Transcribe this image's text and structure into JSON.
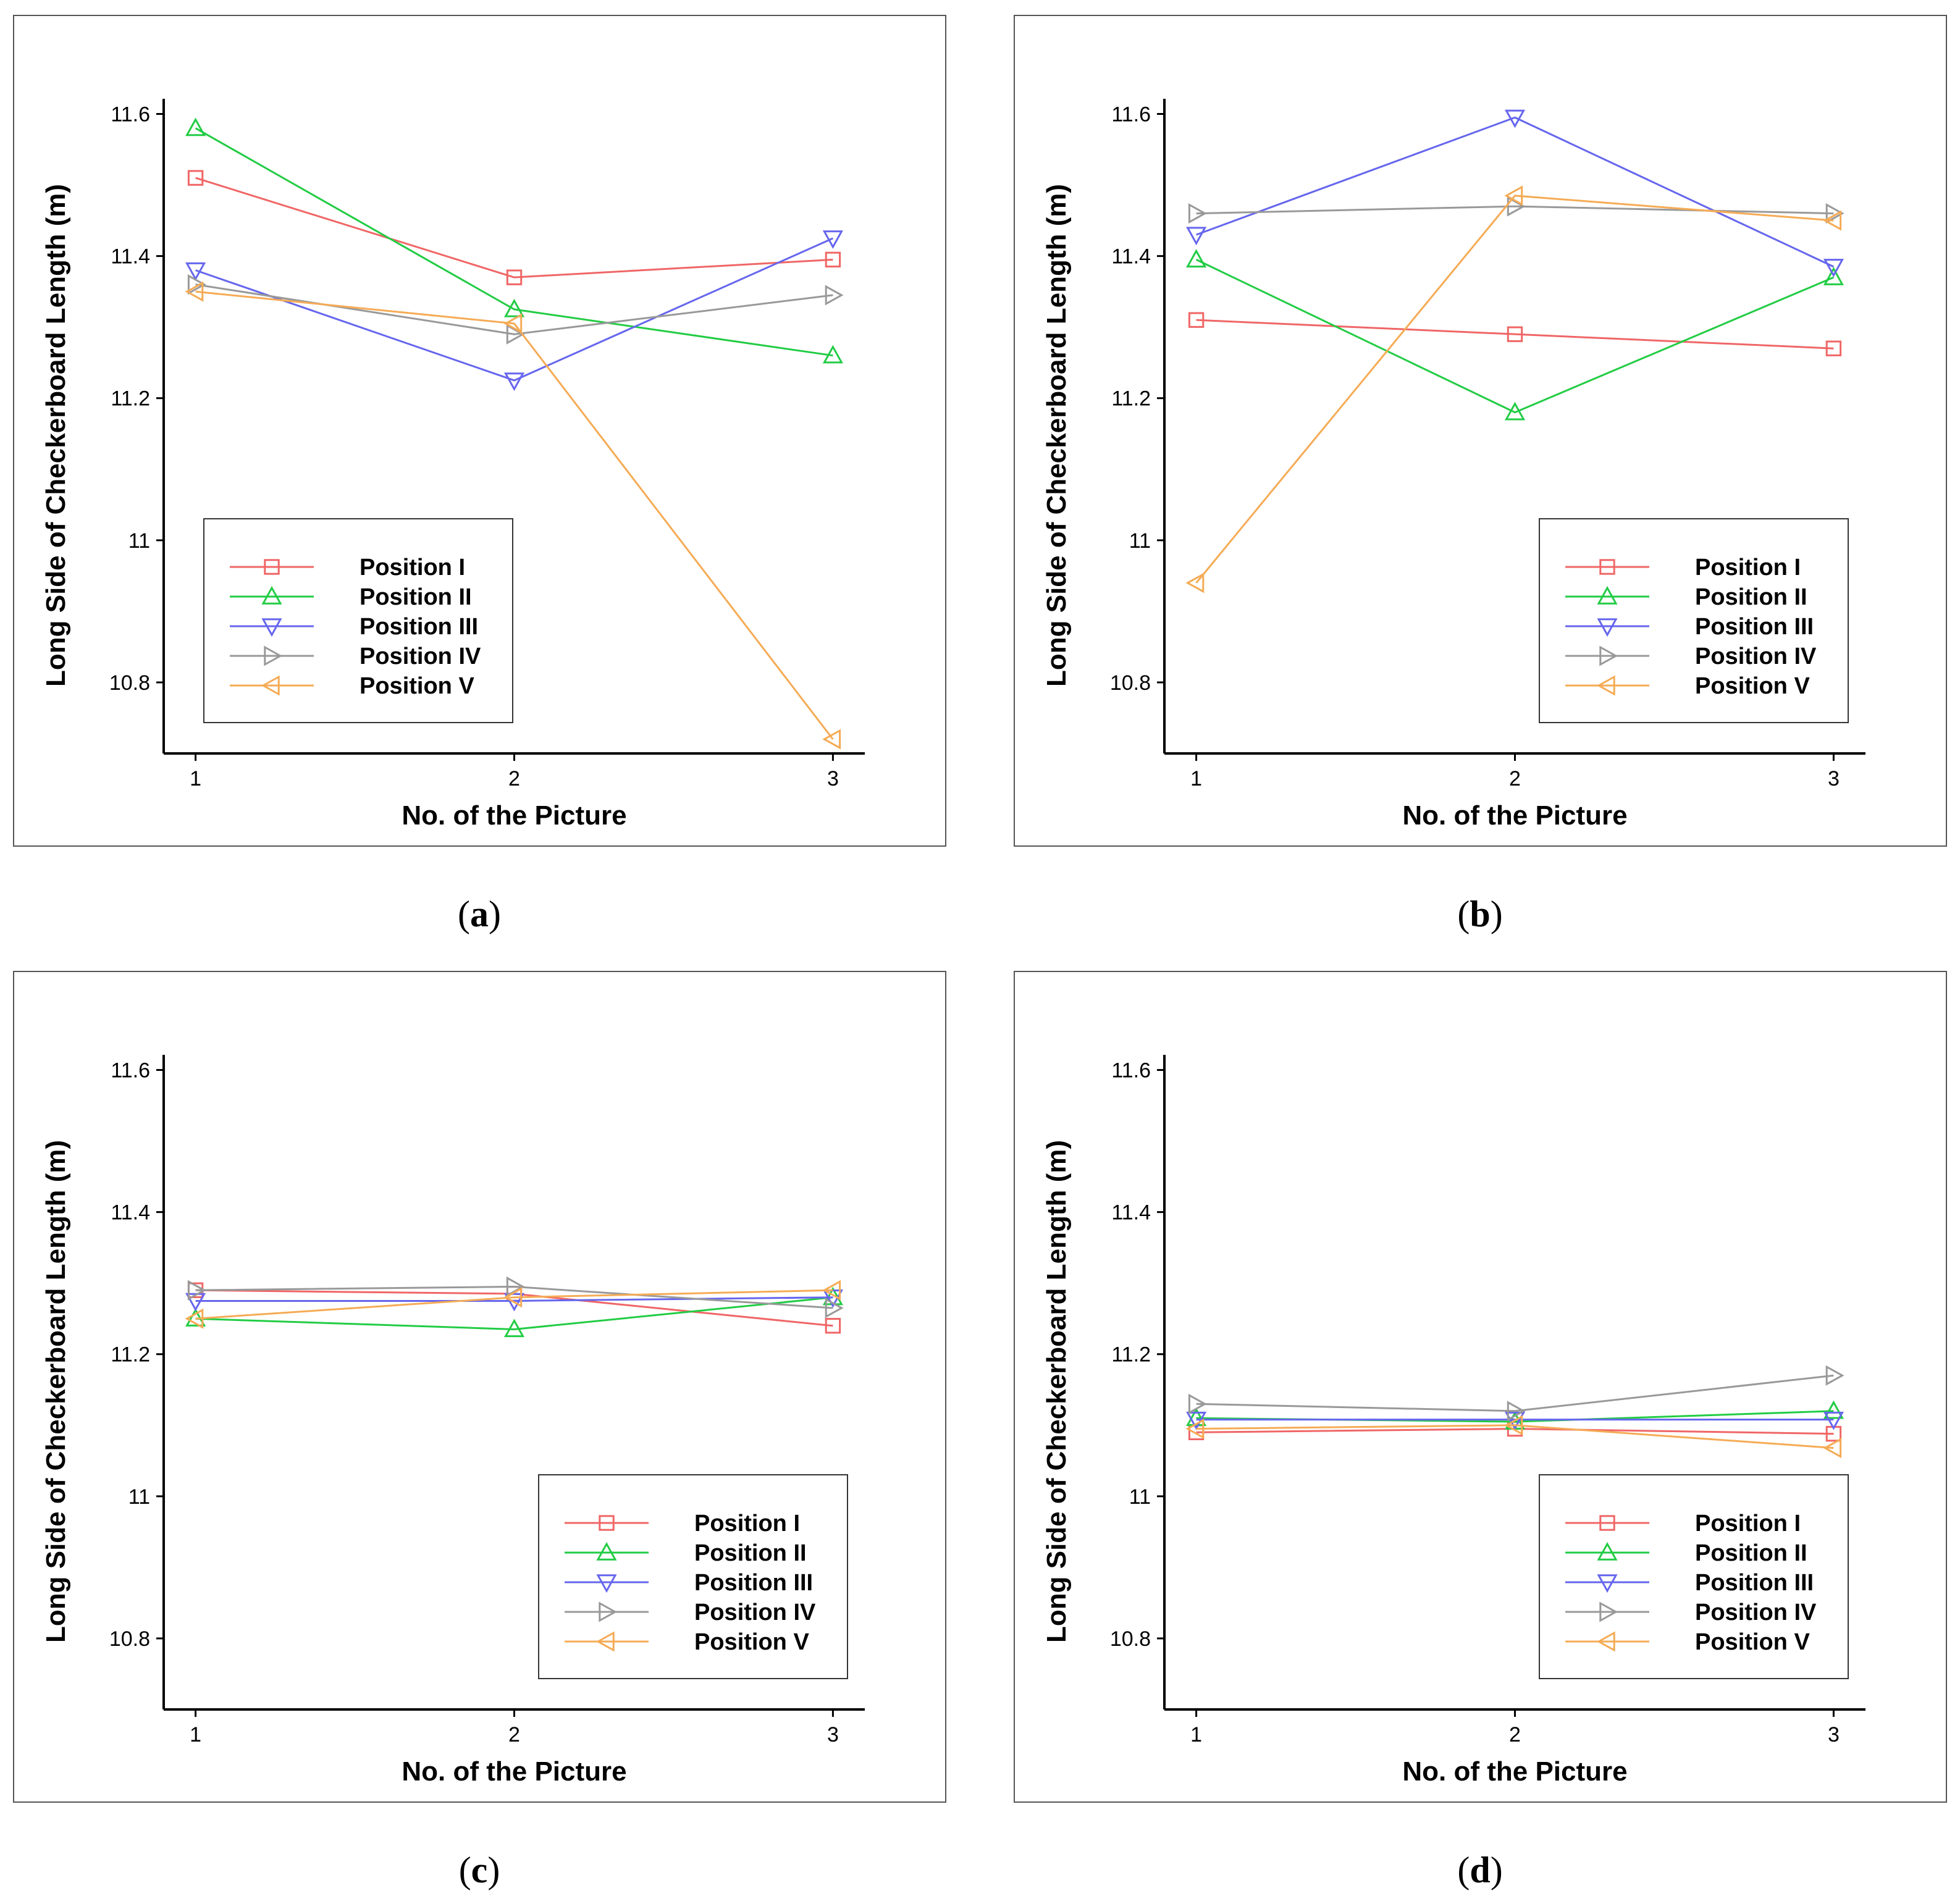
{
  "figure": {
    "panels": [
      "a",
      "b",
      "c",
      "d"
    ],
    "captions": [
      "(a)",
      "(b)",
      "(c)",
      "(d)"
    ],
    "caption_letters": [
      "a",
      "b",
      "c",
      "d"
    ]
  },
  "chart_data": [
    {
      "panel": "a",
      "type": "line",
      "xlabel": "No. of the Picture",
      "ylabel": "Long Side of Checkerboard Length (m)",
      "x": [
        1,
        2,
        3
      ],
      "xlim": [
        0.9,
        3.1
      ],
      "ylim": [
        10.7,
        11.63
      ],
      "yticks": [
        10.8,
        11,
        11.2,
        11.4,
        11.6
      ],
      "ytick_labels": [
        "10.8",
        "11",
        "11.2",
        "11.4",
        "11.6"
      ],
      "xtick_labels": [
        "1",
        "2",
        "3"
      ],
      "legend_position": "bottom-center",
      "series": [
        {
          "name": "Position I",
          "color": "#f06666",
          "marker": "square",
          "values": [
            11.51,
            11.37,
            11.395
          ]
        },
        {
          "name": "Position II",
          "color": "#22cc44",
          "marker": "triangle-up",
          "values": [
            11.58,
            11.325,
            11.26
          ]
        },
        {
          "name": "Position III",
          "color": "#6666ee",
          "marker": "triangle-down",
          "values": [
            11.38,
            11.225,
            11.425
          ]
        },
        {
          "name": "Position IV",
          "color": "#999999",
          "marker": "triangle-right",
          "values": [
            11.36,
            11.29,
            11.345
          ]
        },
        {
          "name": "Position V",
          "color": "#f5ab55",
          "marker": "triangle-left",
          "values": [
            11.35,
            11.305,
            10.72
          ]
        }
      ]
    },
    {
      "panel": "b",
      "type": "line",
      "xlabel": "No. of the Picture",
      "ylabel": "Long Side of Checkerboard Length (m)",
      "x": [
        1,
        2,
        3
      ],
      "xlim": [
        0.9,
        3.1
      ],
      "ylim": [
        10.7,
        11.63
      ],
      "yticks": [
        10.8,
        11,
        11.2,
        11.4,
        11.6
      ],
      "ytick_labels": [
        "10.8",
        "11",
        "11.2",
        "11.4",
        "11.6"
      ],
      "xtick_labels": [
        "1",
        "2",
        "3"
      ],
      "legend_position": "bottom-right",
      "series": [
        {
          "name": "Position I",
          "color": "#f06666",
          "marker": "square",
          "values": [
            11.31,
            11.29,
            11.27
          ]
        },
        {
          "name": "Position II",
          "color": "#22cc44",
          "marker": "triangle-up",
          "values": [
            11.395,
            11.18,
            11.37
          ]
        },
        {
          "name": "Position III",
          "color": "#6666ee",
          "marker": "triangle-down",
          "values": [
            11.43,
            11.595,
            11.385
          ]
        },
        {
          "name": "Position IV",
          "color": "#999999",
          "marker": "triangle-right",
          "values": [
            11.46,
            11.47,
            11.46
          ]
        },
        {
          "name": "Position V",
          "color": "#f5ab55",
          "marker": "triangle-left",
          "values": [
            10.94,
            11.485,
            11.45
          ]
        }
      ]
    },
    {
      "panel": "c",
      "type": "line",
      "xlabel": "No. of the Picture",
      "ylabel": "Long Side of Checkerboard Length (m)",
      "x": [
        1,
        2,
        3
      ],
      "xlim": [
        0.9,
        3.1
      ],
      "ylim": [
        10.7,
        11.63
      ],
      "yticks": [
        10.8,
        11,
        11.2,
        11.4,
        11.6
      ],
      "ytick_labels": [
        "10.8",
        "11",
        "11.2",
        "11.4",
        "11.6"
      ],
      "xtick_labels": [
        "1",
        "2",
        "3"
      ],
      "legend_position": "bottom-right",
      "series": [
        {
          "name": "Position I",
          "color": "#f06666",
          "marker": "square",
          "values": [
            11.29,
            11.285,
            11.24
          ]
        },
        {
          "name": "Position II",
          "color": "#22cc44",
          "marker": "triangle-up",
          "values": [
            11.25,
            11.235,
            11.28
          ]
        },
        {
          "name": "Position III",
          "color": "#6666ee",
          "marker": "triangle-down",
          "values": [
            11.275,
            11.275,
            11.28
          ]
        },
        {
          "name": "Position IV",
          "color": "#999999",
          "marker": "triangle-right",
          "values": [
            11.29,
            11.295,
            11.265
          ]
        },
        {
          "name": "Position V",
          "color": "#f5ab55",
          "marker": "triangle-left",
          "values": [
            11.25,
            11.28,
            11.29
          ]
        }
      ]
    },
    {
      "panel": "d",
      "type": "line",
      "xlabel": "No. of the Picture",
      "ylabel": "Long Side of Checkerboard Length (m)",
      "x": [
        1,
        2,
        3
      ],
      "xlim": [
        0.9,
        3.1
      ],
      "ylim": [
        10.7,
        11.63
      ],
      "yticks": [
        10.8,
        11,
        11.2,
        11.4,
        11.6
      ],
      "ytick_labels": [
        "10.8",
        "11",
        "11.2",
        "11.4",
        "11.6"
      ],
      "xtick_labels": [
        "1",
        "2",
        "3"
      ],
      "legend_position": "bottom-right",
      "series": [
        {
          "name": "Position I",
          "color": "#f06666",
          "marker": "square",
          "values": [
            11.09,
            11.095,
            11.088
          ]
        },
        {
          "name": "Position II",
          "color": "#22cc44",
          "marker": "triangle-up",
          "values": [
            11.11,
            11.105,
            11.12
          ]
        },
        {
          "name": "Position III",
          "color": "#6666ee",
          "marker": "triangle-down",
          "values": [
            11.108,
            11.108,
            11.108
          ]
        },
        {
          "name": "Position IV",
          "color": "#999999",
          "marker": "triangle-right",
          "values": [
            11.13,
            11.12,
            11.17
          ]
        },
        {
          "name": "Position V",
          "color": "#f5ab55",
          "marker": "triangle-left",
          "values": [
            11.095,
            11.1,
            11.068
          ]
        }
      ]
    }
  ]
}
